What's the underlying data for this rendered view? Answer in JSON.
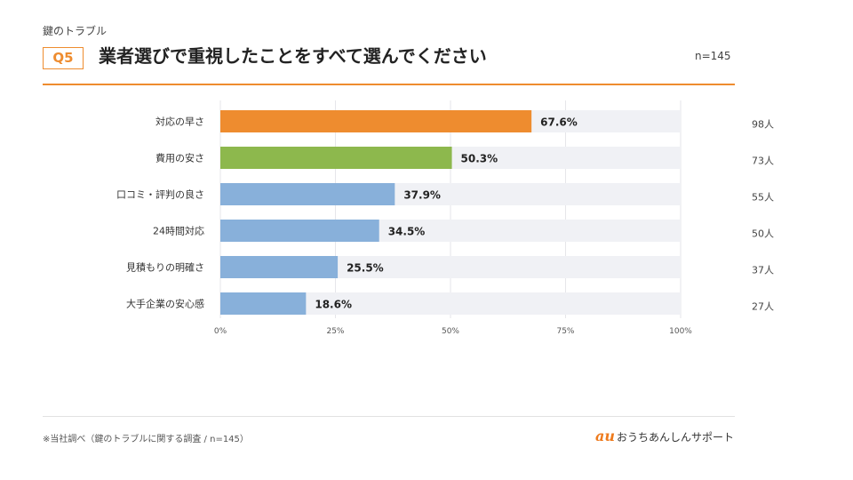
{
  "header": {
    "category": "鍵のトラブル",
    "question_badge": "Q5",
    "title": "業者選びで重視したことをすべて選んでください",
    "sample_size": "n=145"
  },
  "chart_data": {
    "type": "bar",
    "orientation": "horizontal",
    "categories": [
      "対応の早さ",
      "費用の安さ",
      "口コミ・評判の良さ",
      "24時間対応",
      "見積もりの明確さ",
      "大手企業の安心感"
    ],
    "values": [
      67.6,
      50.3,
      37.9,
      34.5,
      25.5,
      18.6
    ],
    "value_labels": [
      "67.6%",
      "50.3%",
      "37.9%",
      "34.5%",
      "25.5%",
      "18.6%"
    ],
    "counts": [
      "98人",
      "73人",
      "55人",
      "50人",
      "37人",
      "27人"
    ],
    "bar_colors": [
      "#ee8c2f",
      "#8db84d",
      "#88b0da",
      "#88b0da",
      "#88b0da",
      "#88b0da"
    ],
    "track_color": "#f0f1f5",
    "grid_color": "#e6e6ea",
    "xlim": [
      0,
      100
    ],
    "x_ticks": [
      0,
      25,
      50,
      75,
      100
    ],
    "x_tick_labels": [
      "0%",
      "25%",
      "50%",
      "75%",
      "100%"
    ],
    "xlabel": "",
    "ylabel": "",
    "grid": true
  },
  "footer": {
    "note": "※当社調べ（鍵のトラブルに関する調査 / n=145）",
    "brand_mark": "au",
    "brand_name": "おうちあんしんサポート"
  }
}
